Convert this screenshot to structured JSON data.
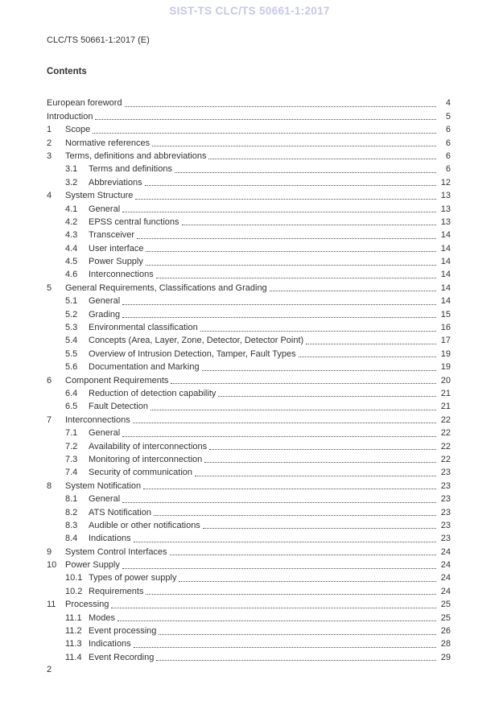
{
  "watermark": "SIST-TS CLC/TS 50661-1:2017",
  "doc_ref": "CLC/TS 50661-1:2017 (E)",
  "contents_heading": "Contents",
  "footer": {
    "page_number": "2"
  },
  "colors": {
    "watermark": "#c6c7ea",
    "text": "#333333",
    "leader_dots": "#4e4e4e"
  },
  "toc": [
    {
      "level": 0,
      "num": "",
      "title": "European foreword",
      "page": "4"
    },
    {
      "level": 0,
      "num": "",
      "title": "Introduction",
      "page": "5"
    },
    {
      "level": 1,
      "num": "1",
      "title": "Scope",
      "page": "6"
    },
    {
      "level": 1,
      "num": "2",
      "title": "Normative references",
      "page": "6"
    },
    {
      "level": 1,
      "num": "3",
      "title": "Terms, definitions and abbreviations",
      "page": "6"
    },
    {
      "level": 2,
      "num": "3.1",
      "title": "Terms and definitions",
      "page": "6"
    },
    {
      "level": 2,
      "num": "3.2",
      "title": "Abbreviations",
      "page": "12"
    },
    {
      "level": 1,
      "num": "4",
      "title": "System Structure",
      "page": "13"
    },
    {
      "level": 2,
      "num": "4.1",
      "title": "General",
      "page": "13"
    },
    {
      "level": 2,
      "num": "4.2",
      "title": "EPSS central functions",
      "page": "13"
    },
    {
      "level": 2,
      "num": "4.3",
      "title": "Transceiver",
      "page": "14"
    },
    {
      "level": 2,
      "num": "4.4",
      "title": "User interface",
      "page": "14"
    },
    {
      "level": 2,
      "num": "4.5",
      "title": "Power Supply",
      "page": "14"
    },
    {
      "level": 2,
      "num": "4.6",
      "title": "Interconnections",
      "page": "14"
    },
    {
      "level": 1,
      "num": "5",
      "title": "General Requirements, Classifications and Grading",
      "page": "14"
    },
    {
      "level": 2,
      "num": "5.1",
      "title": "General",
      "page": "14"
    },
    {
      "level": 2,
      "num": "5.2",
      "title": "Grading",
      "page": "15"
    },
    {
      "level": 2,
      "num": "5.3",
      "title": "Environmental classification",
      "page": "16"
    },
    {
      "level": 2,
      "num": "5.4",
      "title": "Concepts (Area, Layer, Zone, Detector, Detector Point)",
      "page": "17"
    },
    {
      "level": 2,
      "num": "5.5",
      "title": "Overview of Intrusion Detection, Tamper, Fault Types",
      "page": "19"
    },
    {
      "level": 2,
      "num": "5.6",
      "title": "Documentation and Marking",
      "page": "19"
    },
    {
      "level": 1,
      "num": "6",
      "title": "Component Requirements",
      "page": "20"
    },
    {
      "level": 2,
      "num": "6.4",
      "title": "Reduction of detection capability",
      "page": "21"
    },
    {
      "level": 2,
      "num": "6.5",
      "title": "Fault Detection",
      "page": "21"
    },
    {
      "level": 1,
      "num": "7",
      "title": "Interconnections",
      "page": "22"
    },
    {
      "level": 2,
      "num": "7.1",
      "title": "General",
      "page": "22"
    },
    {
      "level": 2,
      "num": "7.2",
      "title": "Availability of interconnections",
      "page": "22"
    },
    {
      "level": 2,
      "num": "7.3",
      "title": "Monitoring of interconnection",
      "page": "22"
    },
    {
      "level": 2,
      "num": "7.4",
      "title": "Security of communication",
      "page": "23"
    },
    {
      "level": 1,
      "num": "8",
      "title": "System Notification",
      "page": "23"
    },
    {
      "level": 2,
      "num": "8.1",
      "title": "General",
      "page": "23"
    },
    {
      "level": 2,
      "num": "8.2",
      "title": "ATS Notification",
      "page": "23"
    },
    {
      "level": 2,
      "num": "8.3",
      "title": "Audible or other notifications",
      "page": "23"
    },
    {
      "level": 2,
      "num": "8.4",
      "title": "Indications",
      "page": "23"
    },
    {
      "level": 1,
      "num": "9",
      "title": "System Control Interfaces",
      "page": "24"
    },
    {
      "level": 1,
      "num": "10",
      "title": "Power Supply",
      "page": "24"
    },
    {
      "level": 2,
      "num": "10.1",
      "title": "Types of power supply",
      "page": "24"
    },
    {
      "level": 2,
      "num": "10.2",
      "title": "Requirements",
      "page": "24"
    },
    {
      "level": 1,
      "num": "11",
      "title": "Processing",
      "page": "25"
    },
    {
      "level": 2,
      "num": "11.1",
      "title": "Modes",
      "page": "25"
    },
    {
      "level": 2,
      "num": "11.2",
      "title": "Event processing",
      "page": "26"
    },
    {
      "level": 2,
      "num": "11.3",
      "title": "Indications",
      "page": "28"
    },
    {
      "level": 2,
      "num": "11.4",
      "title": "Event Recording",
      "page": "29"
    }
  ]
}
